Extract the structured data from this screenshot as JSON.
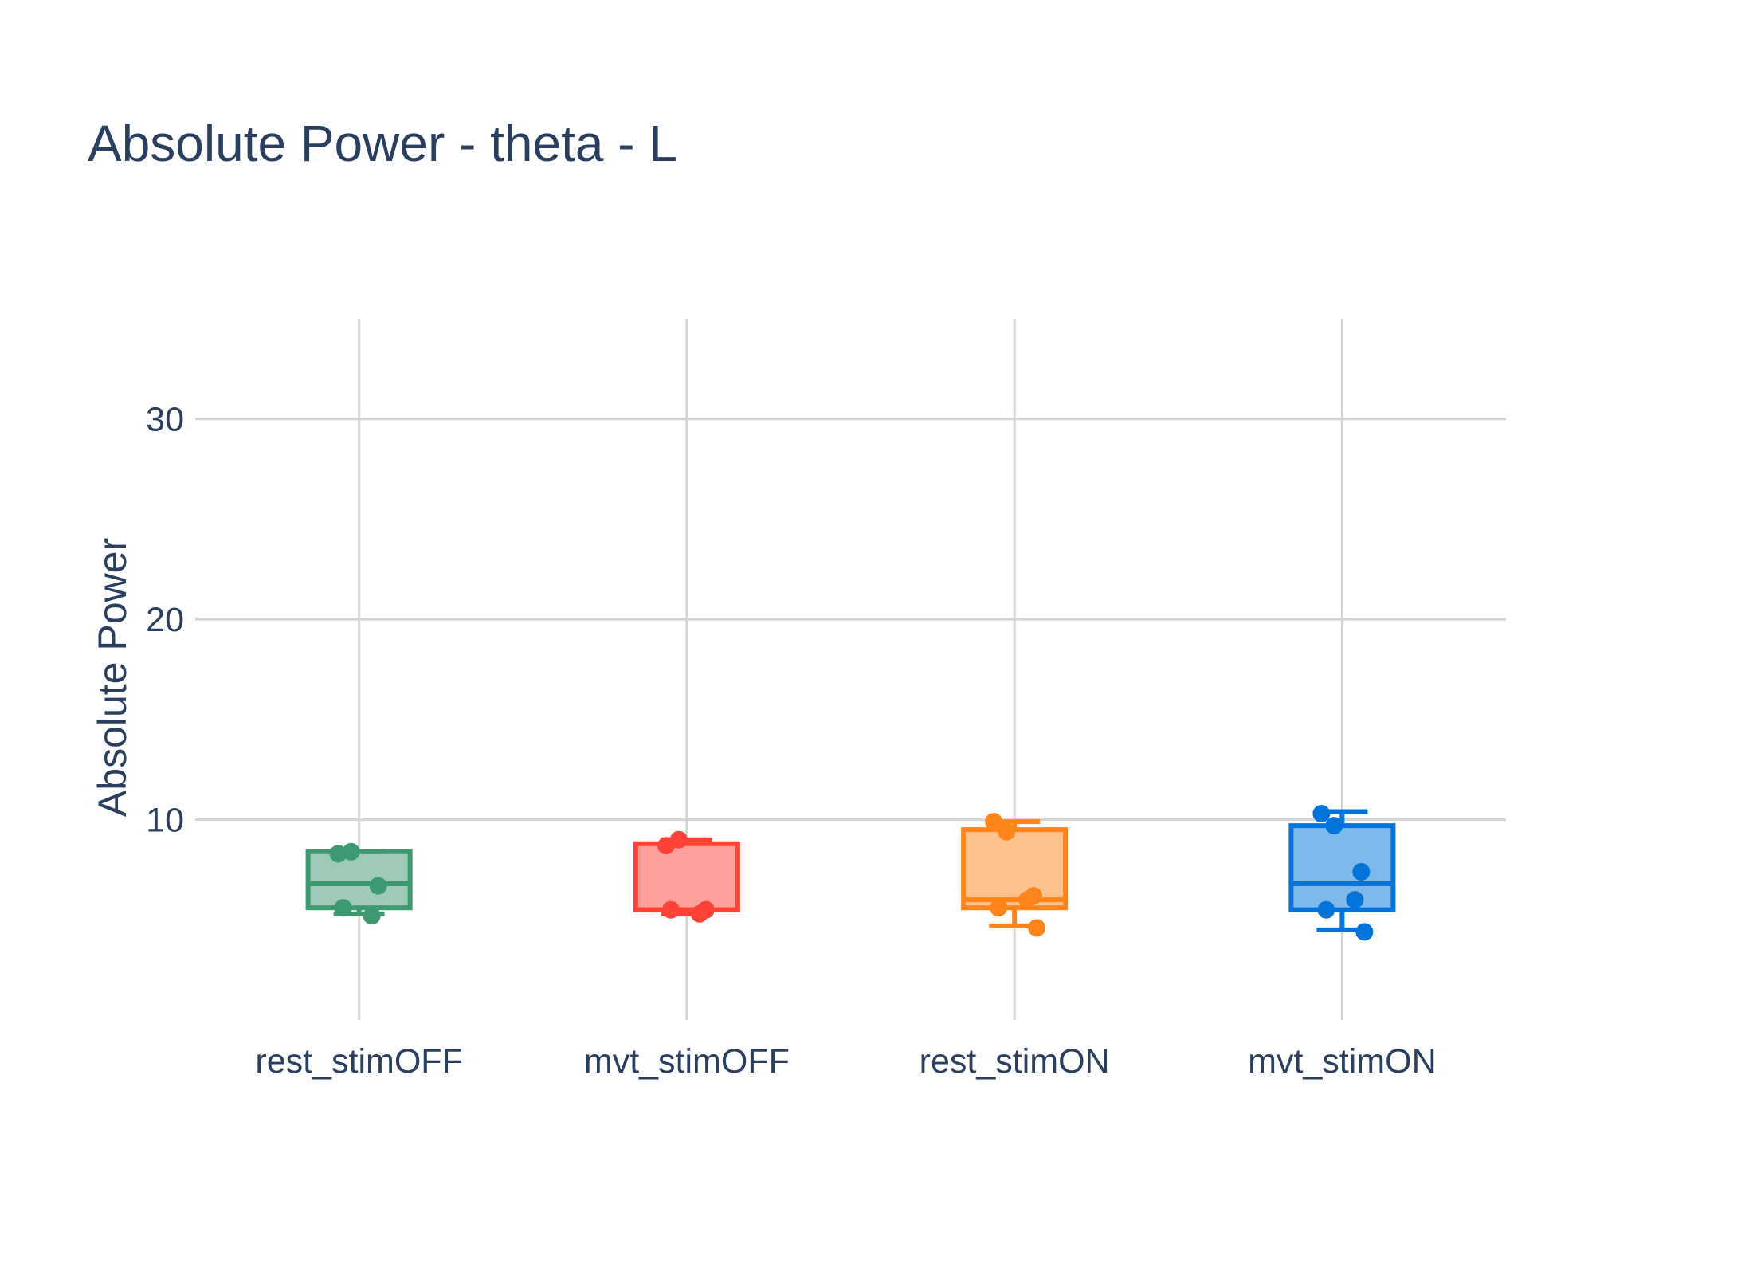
{
  "chart_data": {
    "type": "box",
    "title": "Absolute Power - theta - L",
    "xlabel": "",
    "ylabel": "Absolute Power",
    "ylim": [
      0,
      35
    ],
    "yticks": [
      10,
      20,
      30
    ],
    "grid": true,
    "legend": "none",
    "categories": [
      "rest_stimOFF",
      "mvt_stimOFF",
      "rest_stimON",
      "mvt_stimON"
    ],
    "series": [
      {
        "category": "rest_stimOFF",
        "color": "#3d9970",
        "fill": "#9ecbb7",
        "q1": 5.6,
        "median": 6.8,
        "q3": 8.4,
        "whisker_low": 5.3,
        "whisker_high": 8.4,
        "points": [
          8.3,
          8.4,
          6.7,
          5.6,
          5.2
        ]
      },
      {
        "category": "mvt_stimOFF",
        "color": "#ff4136",
        "fill": "#ffa09b",
        "q1": 5.5,
        "median": 5.5,
        "q3": 8.8,
        "whisker_low": 5.3,
        "whisker_high": 9.0,
        "points": [
          8.7,
          9.0,
          5.5,
          5.5,
          5.3
        ]
      },
      {
        "category": "rest_stimON",
        "color": "#ff851b",
        "fill": "#ffc28d",
        "q1": 5.6,
        "median": 6.0,
        "q3": 9.5,
        "whisker_low": 4.7,
        "whisker_high": 9.9,
        "points": [
          9.9,
          9.4,
          6.2,
          5.6,
          6.0,
          4.6
        ]
      },
      {
        "category": "mvt_stimON",
        "color": "#0074d9",
        "fill": "#7fb9ec",
        "q1": 5.5,
        "median": 6.8,
        "q3": 9.7,
        "whisker_low": 4.5,
        "whisker_high": 10.4,
        "points": [
          10.3,
          9.7,
          7.4,
          5.5,
          6.0,
          4.4
        ]
      }
    ]
  }
}
